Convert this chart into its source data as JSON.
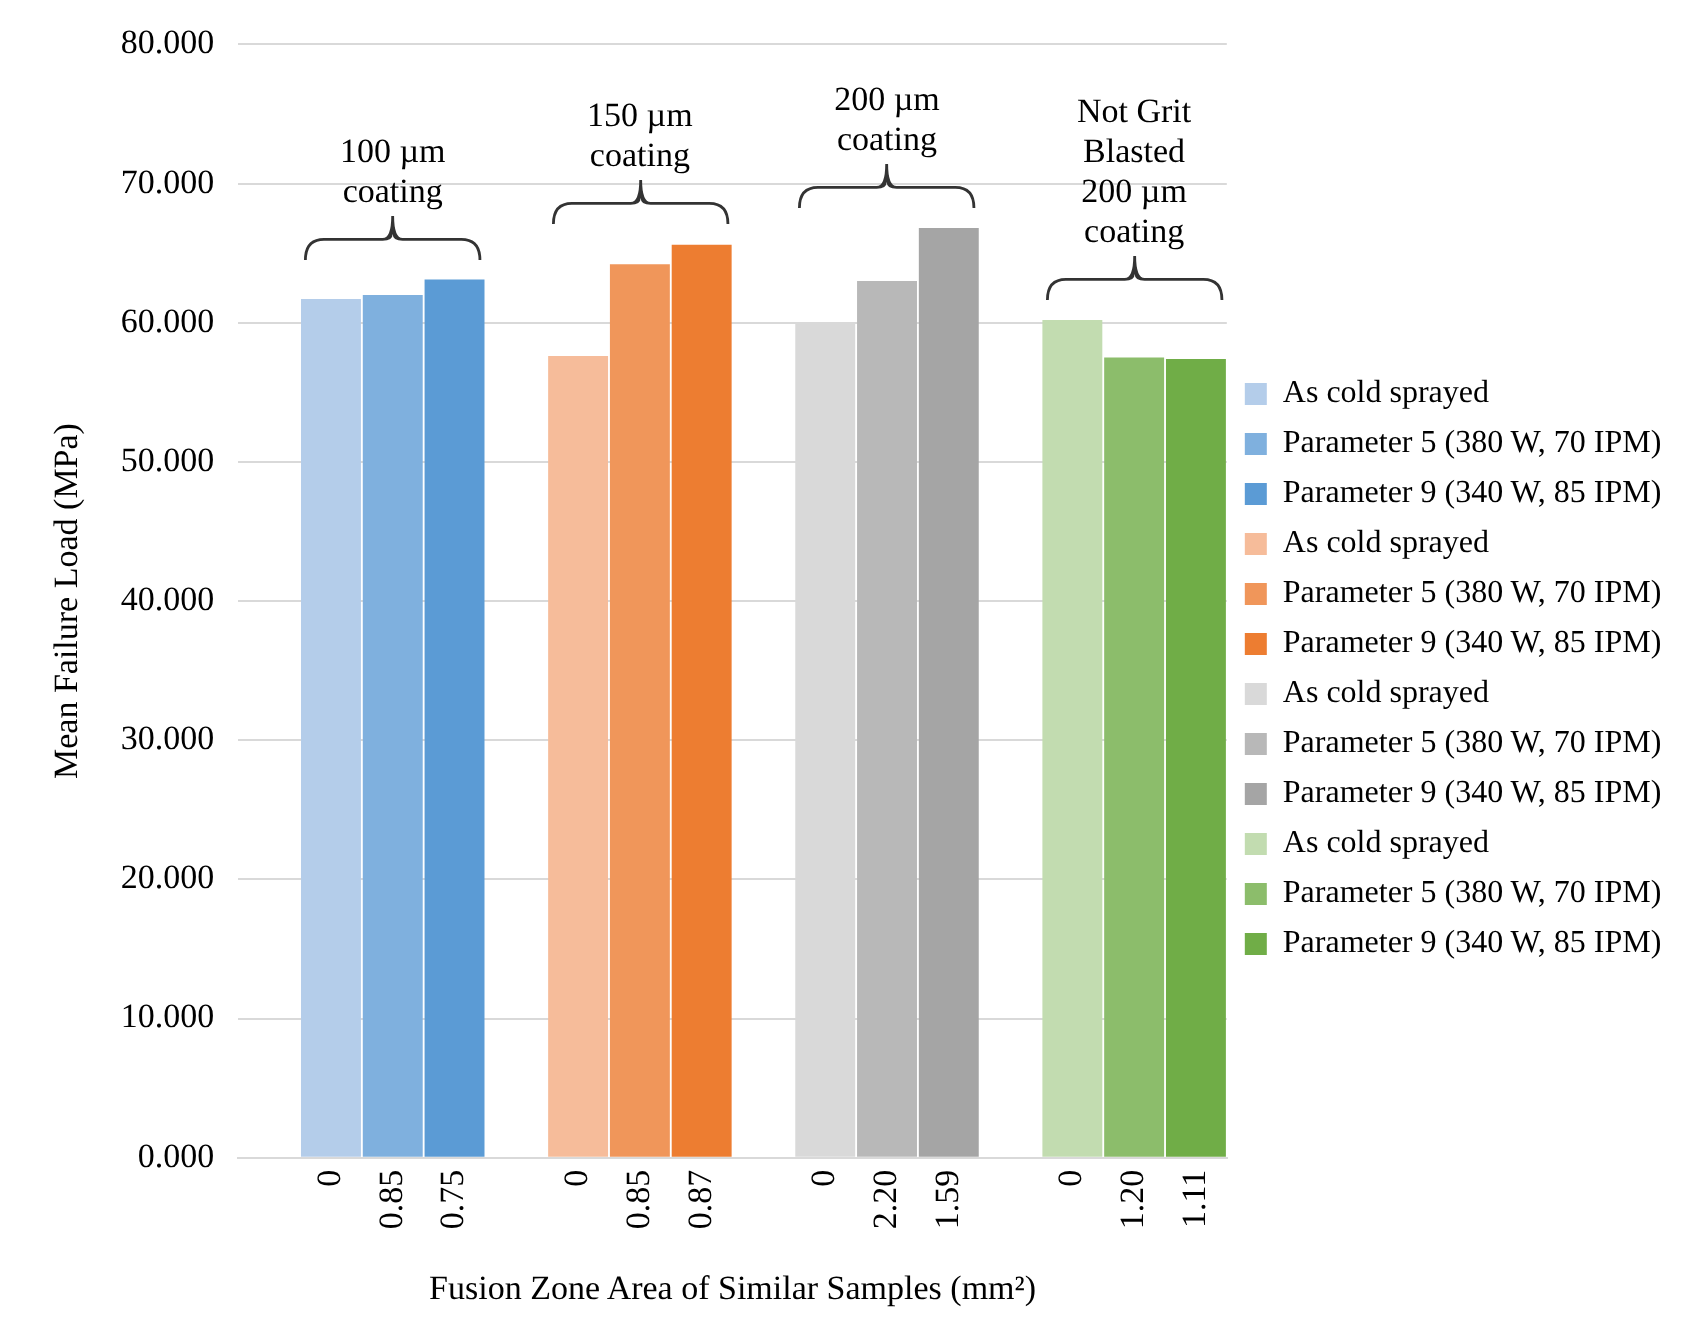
{
  "chart_data": {
    "type": "bar",
    "xlabel": "Fusion Zone Area of Similar Samples (mm²)",
    "ylabel": "Mean Failure Load (MPa)",
    "categories": [
      null,
      "0",
      "0.85",
      "0.75",
      null,
      "0",
      "0.85",
      "0.87",
      null,
      "0",
      "2.20",
      "1.59",
      null,
      "0",
      "1.20",
      "1.11"
    ],
    "series": [
      {
        "name": "As cold sprayed",
        "color": "#b4cdea",
        "values": [
          null,
          61.7,
          null,
          null,
          null,
          null,
          null,
          null,
          null,
          null,
          null,
          null,
          null,
          null,
          null,
          null
        ]
      },
      {
        "name": "Parameter 5 (380 W, 70 IPM)",
        "color": "#7fb0de",
        "values": [
          null,
          null,
          62.0,
          null,
          null,
          null,
          null,
          null,
          null,
          null,
          null,
          null,
          null,
          null,
          null,
          null
        ]
      },
      {
        "name": "Parameter 9 (340 W, 85 IPM)",
        "color": "#5b9bd5",
        "values": [
          null,
          null,
          null,
          63.1,
          null,
          null,
          null,
          null,
          null,
          null,
          null,
          null,
          null,
          null,
          null,
          null
        ]
      },
      {
        "name": "As cold sprayed",
        "color": "#f6bc9a",
        "values": [
          null,
          null,
          null,
          null,
          null,
          57.6,
          null,
          null,
          null,
          null,
          null,
          null,
          null,
          null,
          null,
          null
        ]
      },
      {
        "name": "Parameter 5 (380 W, 70 IPM)",
        "color": "#f0965a",
        "values": [
          null,
          null,
          null,
          null,
          null,
          null,
          64.2,
          null,
          null,
          null,
          null,
          null,
          null,
          null,
          null,
          null
        ]
      },
      {
        "name": "Parameter 9 (340 W, 85 IPM)",
        "color": "#ed7d31",
        "values": [
          null,
          null,
          null,
          null,
          null,
          null,
          null,
          65.6,
          null,
          null,
          null,
          null,
          null,
          null,
          null,
          null
        ]
      },
      {
        "name": "As cold sprayed",
        "color": "#d9d9d9",
        "values": [
          null,
          null,
          null,
          null,
          null,
          null,
          null,
          null,
          null,
          59.9,
          null,
          null,
          null,
          null,
          null,
          null
        ]
      },
      {
        "name": "Parameter 5 (380 W, 70 IPM)",
        "color": "#b8b8b8",
        "values": [
          null,
          null,
          null,
          null,
          null,
          null,
          null,
          null,
          null,
          null,
          63.0,
          null,
          null,
          null,
          null,
          null
        ]
      },
      {
        "name": "Parameter 9 (340 W, 85 IPM)",
        "color": "#a5a5a5",
        "values": [
          null,
          null,
          null,
          null,
          null,
          null,
          null,
          null,
          null,
          null,
          null,
          66.8,
          null,
          null,
          null,
          null
        ]
      },
      {
        "name": "As cold sprayed",
        "color": "#c2dcb0",
        "values": [
          null,
          null,
          null,
          null,
          null,
          null,
          null,
          null,
          null,
          null,
          null,
          null,
          null,
          60.2,
          null,
          null
        ]
      },
      {
        "name": "Parameter 5 (380 W, 70 IPM)",
        "color": "#8cbd6b",
        "values": [
          null,
          null,
          null,
          null,
          null,
          null,
          null,
          null,
          null,
          null,
          null,
          null,
          null,
          null,
          57.5,
          null
        ]
      },
      {
        "name": "Parameter 9 (340 W, 85 IPM)",
        "color": "#70ad47",
        "values": [
          null,
          null,
          null,
          null,
          null,
          null,
          null,
          null,
          null,
          null,
          null,
          null,
          null,
          null,
          null,
          57.4
        ]
      }
    ],
    "ylim": [
      0,
      80
    ],
    "yticks": [
      {
        "value": 0,
        "label": "0.000"
      },
      {
        "value": 10,
        "label": "10.000"
      },
      {
        "value": 20,
        "label": "20.000"
      },
      {
        "value": 30,
        "label": "30.000"
      },
      {
        "value": 40,
        "label": "40.000"
      },
      {
        "value": 50,
        "label": "50.000"
      },
      {
        "value": 60,
        "label": "60.000"
      },
      {
        "value": 70,
        "label": "70.000"
      },
      {
        "value": 80,
        "label": "80.000"
      }
    ],
    "annotations": [
      "100 µm\ncoating",
      "150 µm\ncoating",
      "200 µm\ncoating",
      "Not Grit\nBlasted\n200 µm\ncoating"
    ],
    "grid": "y",
    "legend": "right"
  }
}
